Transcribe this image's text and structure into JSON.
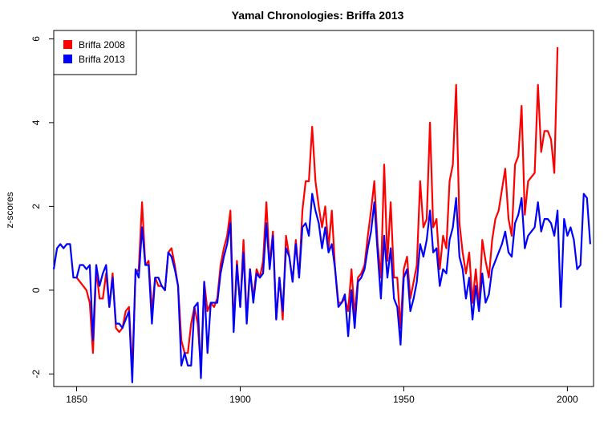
{
  "chart_data": {
    "type": "line",
    "title": "Yamal Chronologies: Briffa 2013",
    "xlabel": "",
    "ylabel": "z-scores",
    "xlim": [
      1843,
      2008
    ],
    "ylim": [
      -2.3,
      6.2
    ],
    "xticks": [
      1850,
      1900,
      1950,
      2000
    ],
    "yticks": [
      -2,
      0,
      2,
      4,
      6
    ],
    "grid": false,
    "legend_position": "top-left",
    "series": [
      {
        "name": "Briffa 2008",
        "color": "#ff0000",
        "points": [
          [
            1850,
            0.3
          ],
          [
            1852,
            0.1
          ],
          [
            1853,
            0.0
          ],
          [
            1854,
            -0.3
          ],
          [
            1855,
            -1.5
          ],
          [
            1856,
            0.5
          ],
          [
            1857,
            -0.2
          ],
          [
            1858,
            -0.2
          ],
          [
            1859,
            0.4
          ],
          [
            1860,
            -0.4
          ],
          [
            1861,
            0.4
          ],
          [
            1862,
            -0.9
          ],
          [
            1863,
            -1.0
          ],
          [
            1864,
            -0.9
          ],
          [
            1865,
            -0.5
          ],
          [
            1866,
            -0.4
          ],
          [
            1867,
            -1.9
          ],
          [
            1868,
            0.4
          ],
          [
            1869,
            0.5
          ],
          [
            1870,
            2.1
          ],
          [
            1871,
            0.6
          ],
          [
            1872,
            0.7
          ],
          [
            1873,
            -0.5
          ],
          [
            1874,
            0.3
          ],
          [
            1875,
            0.1
          ],
          [
            1876,
            0.1
          ],
          [
            1877,
            0.0
          ],
          [
            1878,
            0.9
          ],
          [
            1879,
            1.0
          ],
          [
            1880,
            0.6
          ],
          [
            1881,
            0.1
          ],
          [
            1882,
            -1.2
          ],
          [
            1883,
            -1.5
          ],
          [
            1884,
            -1.5
          ],
          [
            1885,
            -0.8
          ],
          [
            1886,
            -0.4
          ],
          [
            1887,
            -0.8
          ],
          [
            1888,
            -1.9
          ],
          [
            1889,
            0.2
          ],
          [
            1890,
            -0.5
          ],
          [
            1891,
            -0.3
          ],
          [
            1892,
            -0.4
          ],
          [
            1893,
            -0.2
          ],
          [
            1894,
            0.6
          ],
          [
            1895,
            1.0
          ],
          [
            1896,
            1.3
          ],
          [
            1897,
            1.9
          ],
          [
            1898,
            -0.9
          ],
          [
            1899,
            0.7
          ],
          [
            1900,
            -0.4
          ],
          [
            1901,
            1.2
          ],
          [
            1902,
            -0.7
          ],
          [
            1903,
            0.5
          ],
          [
            1904,
            -0.2
          ],
          [
            1905,
            0.5
          ],
          [
            1906,
            0.3
          ],
          [
            1907,
            0.7
          ],
          [
            1908,
            2.1
          ],
          [
            1909,
            0.6
          ],
          [
            1910,
            1.4
          ],
          [
            1911,
            -0.7
          ],
          [
            1912,
            0.3
          ],
          [
            1913,
            -0.7
          ],
          [
            1914,
            1.3
          ],
          [
            1915,
            0.8
          ],
          [
            1916,
            0.2
          ],
          [
            1917,
            1.2
          ],
          [
            1918,
            0.3
          ],
          [
            1919,
            1.9
          ],
          [
            1920,
            2.6
          ],
          [
            1921,
            2.6
          ],
          [
            1922,
            3.9
          ],
          [
            1923,
            2.6
          ],
          [
            1924,
            2.0
          ],
          [
            1925,
            1.5
          ],
          [
            1926,
            2.0
          ],
          [
            1927,
            1.0
          ],
          [
            1928,
            1.9
          ],
          [
            1929,
            0.5
          ],
          [
            1930,
            -0.3
          ],
          [
            1931,
            -0.3
          ],
          [
            1932,
            -0.2
          ],
          [
            1933,
            -0.5
          ],
          [
            1934,
            0.5
          ],
          [
            1935,
            -0.6
          ],
          [
            1936,
            0.3
          ],
          [
            1937,
            0.4
          ],
          [
            1938,
            0.6
          ],
          [
            1939,
            1.3
          ],
          [
            1940,
            1.9
          ],
          [
            1941,
            2.6
          ],
          [
            1942,
            1.1
          ],
          [
            1943,
            0.3
          ],
          [
            1944,
            3.0
          ],
          [
            1945,
            0.7
          ],
          [
            1946,
            2.1
          ],
          [
            1947,
            0.3
          ],
          [
            1948,
            0.3
          ],
          [
            1949,
            -0.9
          ],
          [
            1950,
            0.5
          ],
          [
            1951,
            0.8
          ],
          [
            1952,
            -0.2
          ],
          [
            1953,
            0.2
          ],
          [
            1954,
            0.6
          ],
          [
            1955,
            2.6
          ],
          [
            1956,
            1.5
          ],
          [
            1957,
            1.7
          ],
          [
            1958,
            4.0
          ],
          [
            1959,
            1.5
          ],
          [
            1960,
            1.7
          ],
          [
            1961,
            0.5
          ],
          [
            1962,
            1.3
          ],
          [
            1963,
            1.0
          ],
          [
            1964,
            2.6
          ],
          [
            1965,
            3.0
          ],
          [
            1966,
            4.9
          ],
          [
            1967,
            1.6
          ],
          [
            1968,
            0.9
          ],
          [
            1969,
            0.4
          ],
          [
            1970,
            0.9
          ],
          [
            1971,
            -0.3
          ],
          [
            1972,
            0.5
          ],
          [
            1973,
            -0.4
          ],
          [
            1974,
            1.2
          ],
          [
            1975,
            0.7
          ],
          [
            1976,
            0.3
          ],
          [
            1977,
            1.2
          ],
          [
            1978,
            1.7
          ],
          [
            1979,
            1.9
          ],
          [
            1980,
            2.4
          ],
          [
            1981,
            2.9
          ],
          [
            1982,
            1.7
          ],
          [
            1983,
            1.3
          ],
          [
            1984,
            3.0
          ],
          [
            1985,
            3.2
          ],
          [
            1986,
            4.4
          ],
          [
            1987,
            1.8
          ],
          [
            1988,
            2.6
          ],
          [
            1989,
            2.7
          ],
          [
            1990,
            2.8
          ],
          [
            1991,
            4.9
          ],
          [
            1992,
            3.3
          ],
          [
            1993,
            3.8
          ],
          [
            1994,
            3.8
          ],
          [
            1995,
            3.6
          ],
          [
            1996,
            2.8
          ],
          [
            1997,
            5.8
          ]
        ]
      },
      {
        "name": "Briffa 2013",
        "color": "#0000ff",
        "points": [
          [
            1843,
            0.5
          ],
          [
            1844,
            1.0
          ],
          [
            1845,
            1.1
          ],
          [
            1846,
            1.0
          ],
          [
            1847,
            1.1
          ],
          [
            1848,
            1.1
          ],
          [
            1849,
            0.3
          ],
          [
            1850,
            0.3
          ],
          [
            1851,
            0.6
          ],
          [
            1852,
            0.6
          ],
          [
            1853,
            0.5
          ],
          [
            1854,
            0.6
          ],
          [
            1855,
            -1.2
          ],
          [
            1856,
            0.6
          ],
          [
            1857,
            0.1
          ],
          [
            1858,
            0.4
          ],
          [
            1859,
            0.6
          ],
          [
            1860,
            -0.4
          ],
          [
            1861,
            0.3
          ],
          [
            1862,
            -0.8
          ],
          [
            1863,
            -0.8
          ],
          [
            1864,
            -0.9
          ],
          [
            1865,
            -0.7
          ],
          [
            1866,
            -0.5
          ],
          [
            1867,
            -2.2
          ],
          [
            1868,
            0.5
          ],
          [
            1869,
            0.3
          ],
          [
            1870,
            1.5
          ],
          [
            1871,
            0.6
          ],
          [
            1872,
            0.6
          ],
          [
            1873,
            -0.8
          ],
          [
            1874,
            0.3
          ],
          [
            1875,
            0.3
          ],
          [
            1876,
            0.1
          ],
          [
            1877,
            0.0
          ],
          [
            1878,
            0.9
          ],
          [
            1879,
            0.8
          ],
          [
            1880,
            0.5
          ],
          [
            1881,
            0.1
          ],
          [
            1882,
            -1.8
          ],
          [
            1883,
            -1.5
          ],
          [
            1884,
            -1.8
          ],
          [
            1885,
            -1.8
          ],
          [
            1886,
            -0.4
          ],
          [
            1887,
            -0.3
          ],
          [
            1888,
            -2.1
          ],
          [
            1889,
            0.2
          ],
          [
            1890,
            -1.5
          ],
          [
            1891,
            -0.3
          ],
          [
            1892,
            -0.3
          ],
          [
            1893,
            -0.3
          ],
          [
            1894,
            0.4
          ],
          [
            1895,
            0.8
          ],
          [
            1896,
            1.1
          ],
          [
            1897,
            1.6
          ],
          [
            1898,
            -1.0
          ],
          [
            1899,
            0.6
          ],
          [
            1900,
            -0.4
          ],
          [
            1901,
            0.9
          ],
          [
            1902,
            -0.8
          ],
          [
            1903,
            0.5
          ],
          [
            1904,
            -0.3
          ],
          [
            1905,
            0.4
          ],
          [
            1906,
            0.3
          ],
          [
            1907,
            0.4
          ],
          [
            1908,
            1.6
          ],
          [
            1909,
            0.5
          ],
          [
            1910,
            1.3
          ],
          [
            1911,
            -0.7
          ],
          [
            1912,
            0.3
          ],
          [
            1913,
            -0.5
          ],
          [
            1914,
            1.0
          ],
          [
            1915,
            0.8
          ],
          [
            1916,
            0.2
          ],
          [
            1917,
            1.1
          ],
          [
            1918,
            0.3
          ],
          [
            1919,
            1.5
          ],
          [
            1920,
            1.6
          ],
          [
            1921,
            1.3
          ],
          [
            1922,
            2.3
          ],
          [
            1923,
            1.9
          ],
          [
            1924,
            1.6
          ],
          [
            1925,
            1.0
          ],
          [
            1926,
            1.5
          ],
          [
            1927,
            0.9
          ],
          [
            1928,
            1.1
          ],
          [
            1929,
            0.5
          ],
          [
            1930,
            -0.4
          ],
          [
            1931,
            -0.3
          ],
          [
            1932,
            -0.1
          ],
          [
            1933,
            -1.1
          ],
          [
            1934,
            0.0
          ],
          [
            1935,
            -0.9
          ],
          [
            1936,
            0.2
          ],
          [
            1937,
            0.3
          ],
          [
            1938,
            0.5
          ],
          [
            1939,
            1.0
          ],
          [
            1940,
            1.4
          ],
          [
            1941,
            2.1
          ],
          [
            1942,
            0.9
          ],
          [
            1943,
            -0.2
          ],
          [
            1944,
            1.3
          ],
          [
            1945,
            0.3
          ],
          [
            1946,
            1.0
          ],
          [
            1947,
            -0.2
          ],
          [
            1948,
            -0.4
          ],
          [
            1949,
            -1.3
          ],
          [
            1950,
            0.3
          ],
          [
            1951,
            0.5
          ],
          [
            1952,
            -0.5
          ],
          [
            1953,
            -0.2
          ],
          [
            1954,
            0.2
          ],
          [
            1955,
            1.1
          ],
          [
            1956,
            0.8
          ],
          [
            1957,
            1.2
          ],
          [
            1958,
            1.9
          ],
          [
            1959,
            0.9
          ],
          [
            1960,
            1.0
          ],
          [
            1961,
            0.1
          ],
          [
            1962,
            0.5
          ],
          [
            1963,
            0.4
          ],
          [
            1964,
            1.2
          ],
          [
            1965,
            1.5
          ],
          [
            1966,
            2.2
          ],
          [
            1967,
            0.8
          ],
          [
            1968,
            0.5
          ],
          [
            1969,
            -0.2
          ],
          [
            1970,
            0.3
          ],
          [
            1971,
            -0.7
          ],
          [
            1972,
            0.1
          ],
          [
            1973,
            -0.5
          ],
          [
            1974,
            0.4
          ],
          [
            1975,
            -0.3
          ],
          [
            1976,
            -0.1
          ],
          [
            1977,
            0.5
          ],
          [
            1978,
            0.7
          ],
          [
            1979,
            0.9
          ],
          [
            1980,
            1.1
          ],
          [
            1981,
            1.4
          ],
          [
            1982,
            0.9
          ],
          [
            1983,
            0.8
          ],
          [
            1984,
            1.6
          ],
          [
            1985,
            1.8
          ],
          [
            1986,
            2.2
          ],
          [
            1987,
            1.0
          ],
          [
            1988,
            1.3
          ],
          [
            1989,
            1.4
          ],
          [
            1990,
            1.5
          ],
          [
            1991,
            2.1
          ],
          [
            1992,
            1.4
          ],
          [
            1993,
            1.7
          ],
          [
            1994,
            1.7
          ],
          [
            1995,
            1.6
          ],
          [
            1996,
            1.3
          ],
          [
            1997,
            1.9
          ],
          [
            1998,
            -0.4
          ],
          [
            1999,
            1.7
          ],
          [
            2000,
            1.3
          ],
          [
            2001,
            1.5
          ],
          [
            2002,
            1.2
          ],
          [
            2003,
            0.5
          ],
          [
            2004,
            0.6
          ],
          [
            2005,
            2.3
          ],
          [
            2006,
            2.2
          ],
          [
            2007,
            1.1
          ]
        ]
      }
    ]
  }
}
